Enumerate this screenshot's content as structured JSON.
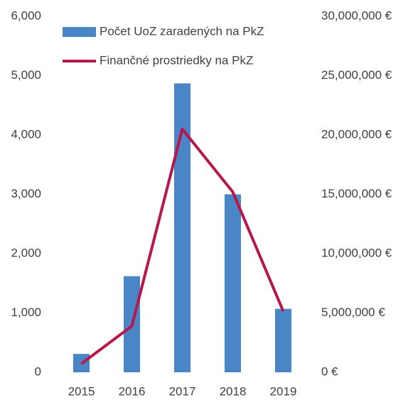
{
  "chart_data": {
    "type": "combo",
    "categories": [
      "2015",
      "2016",
      "2017",
      "2018",
      "2019"
    ],
    "series": [
      {
        "name": "Počet UoZ zaradených na PkZ",
        "type": "bar",
        "color": "#4a86c5",
        "values": [
          310,
          1620,
          4870,
          3000,
          1070
        ]
      },
      {
        "name": "Finančné prostriedky na PkZ",
        "type": "line",
        "axis": "y2",
        "color": "#b5174f",
        "values": [
          720000,
          3900000,
          20500000,
          15200000,
          5150000
        ]
      }
    ],
    "ylim": [
      0,
      6000
    ],
    "yticks": [
      0,
      {
        "value": 1000,
        "label": "1,000"
      },
      {
        "value": 2000,
        "label": "2,000"
      },
      {
        "value": 3000,
        "label": "3,000"
      },
      {
        "value": 4000,
        "label": "4,000"
      },
      {
        "value": 5000,
        "label": "5,000"
      },
      {
        "value": 6000,
        "label": "6,000"
      }
    ],
    "y2lim": [
      0,
      30000000
    ],
    "y2ticks": [
      {
        "value": 0,
        "label": "0 €"
      },
      {
        "value": 5000000,
        "label": "5,000,000 €"
      },
      {
        "value": 10000000,
        "label": "10,000,000 €"
      },
      {
        "value": 15000000,
        "label": "15,000,000 €"
      },
      {
        "value": 20000000,
        "label": "20,000,000 €"
      },
      {
        "value": 25000000,
        "label": "25,000,000 €"
      },
      {
        "value": 30000000,
        "label": "30,000,000 €"
      }
    ],
    "grid": false,
    "legend": "top-left"
  }
}
